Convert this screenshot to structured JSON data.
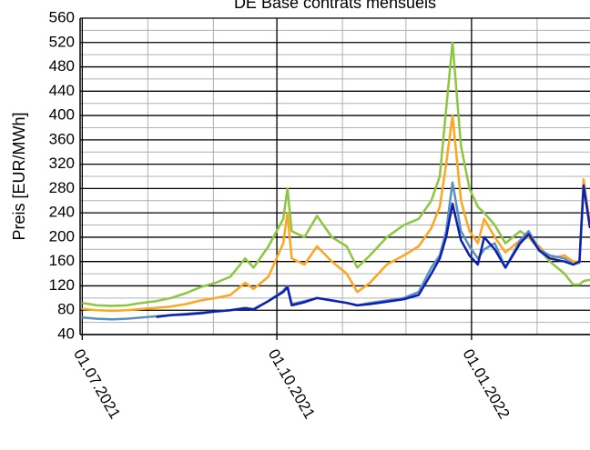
{
  "chart_data": {
    "type": "line",
    "title": "DE Base contrats mensuels",
    "y_label": "Preis [EUR/MWh]",
    "ylim": [
      40,
      560
    ],
    "yticks": [
      40,
      80,
      120,
      160,
      200,
      240,
      280,
      320,
      360,
      400,
      440,
      480,
      520,
      560
    ],
    "yminorticks": [
      60,
      100,
      140,
      180,
      220,
      260,
      300,
      340,
      380,
      420,
      460,
      500,
      540
    ],
    "xlim": [
      "2021-06-30",
      "2022-02-26"
    ],
    "xticks": [
      {
        "value": "2021-07-01",
        "label": "01.07.2021"
      },
      {
        "value": "2021-10-01",
        "label": "01.10.2021"
      },
      {
        "value": "2022-01-01",
        "label": "01.01.2022"
      }
    ],
    "xminorticks": [
      "2021-08-01",
      "2021-09-01",
      "2021-11-01",
      "2021-12-01",
      "2022-02-01"
    ],
    "grid": true,
    "x": [
      "2021-07-01",
      "2021-07-08",
      "2021-07-15",
      "2021-07-22",
      "2021-07-29",
      "2021-08-05",
      "2021-08-12",
      "2021-08-19",
      "2021-08-26",
      "2021-09-02",
      "2021-09-09",
      "2021-09-16",
      "2021-09-20",
      "2021-09-27",
      "2021-10-04",
      "2021-10-06",
      "2021-10-08",
      "2021-10-14",
      "2021-10-20",
      "2021-10-27",
      "2021-11-03",
      "2021-11-08",
      "2021-11-14",
      "2021-11-22",
      "2021-11-30",
      "2021-12-07",
      "2021-12-13",
      "2021-12-17",
      "2021-12-20",
      "2021-12-23",
      "2021-12-27",
      "2021-12-31",
      "2022-01-04",
      "2022-01-07",
      "2022-01-12",
      "2022-01-17",
      "2022-01-24",
      "2022-01-28",
      "2022-02-02",
      "2022-02-07",
      "2022-02-14",
      "2022-02-18",
      "2022-02-21",
      "2022-02-23",
      "2022-02-26"
    ],
    "series": [
      {
        "color": "#8dc63f",
        "values": [
          92,
          88,
          87,
          88,
          92,
          95,
          100,
          108,
          118,
          125,
          135,
          165,
          150,
          185,
          230,
          280,
          210,
          200,
          235,
          200,
          185,
          150,
          170,
          200,
          220,
          230,
          260,
          300,
          410,
          520,
          350,
          280,
          250,
          240,
          220,
          190,
          210,
          200,
          180,
          160,
          140,
          122,
          122,
          128,
          130
        ]
      },
      {
        "color": "#ffa51f",
        "values": [
          82,
          80,
          79,
          80,
          82,
          84,
          86,
          90,
          96,
          100,
          105,
          125,
          115,
          135,
          190,
          240,
          165,
          155,
          185,
          160,
          140,
          110,
          125,
          155,
          170,
          185,
          215,
          250,
          320,
          400,
          260,
          210,
          190,
          230,
          200,
          175,
          195,
          200,
          185,
          165,
          170,
          160,
          160,
          295,
          220
        ]
      },
      {
        "color": "#5b8fc0",
        "values": [
          68,
          66,
          65,
          66,
          68,
          70,
          72,
          74,
          76,
          78,
          80,
          84,
          82,
          95,
          112,
          120,
          90,
          95,
          100,
          96,
          92,
          88,
          92,
          96,
          100,
          110,
          150,
          170,
          210,
          290,
          210,
          185,
          165,
          180,
          190,
          150,
          195,
          210,
          180,
          170,
          165,
          155,
          158,
          285,
          215
        ]
      },
      {
        "color": "#0b1fb0",
        "values": [
          null,
          null,
          null,
          null,
          null,
          69,
          72,
          73,
          75,
          78,
          80,
          83,
          81,
          95,
          110,
          118,
          88,
          93,
          100,
          96,
          92,
          88,
          90,
          94,
          98,
          105,
          140,
          165,
          200,
          255,
          195,
          170,
          155,
          200,
          180,
          150,
          190,
          205,
          178,
          165,
          160,
          155,
          160,
          285,
          215
        ]
      }
    ]
  }
}
